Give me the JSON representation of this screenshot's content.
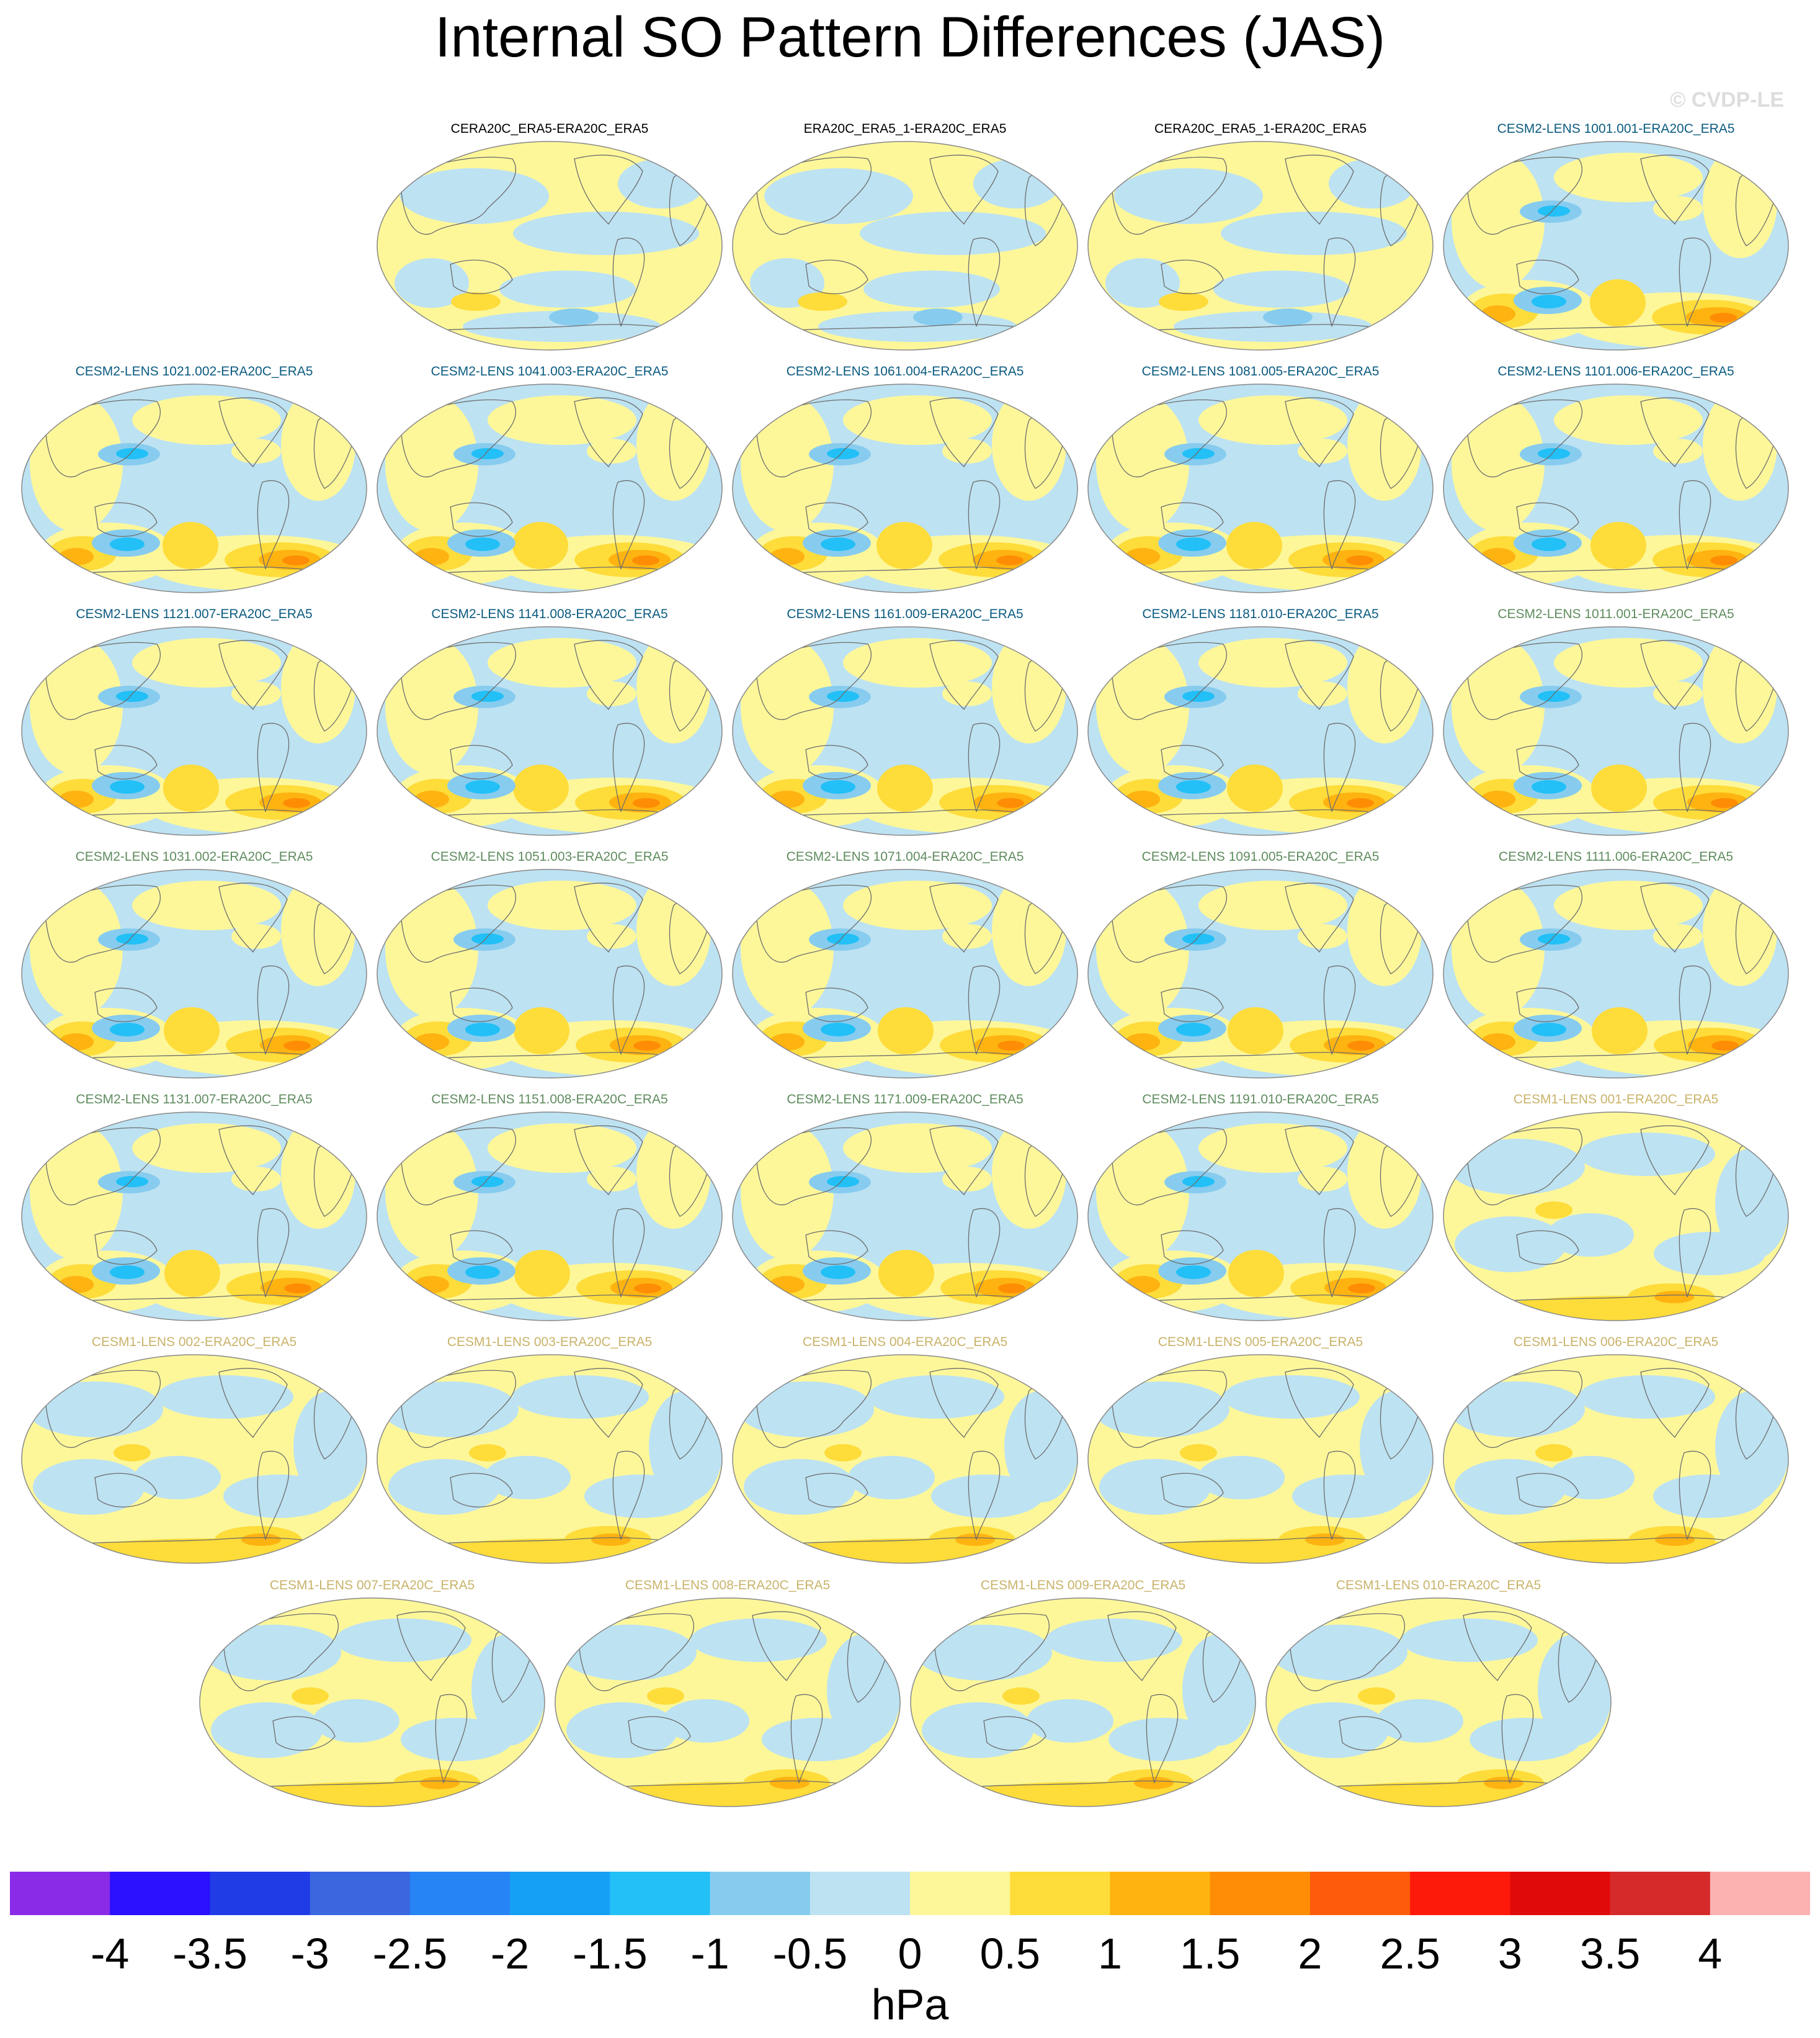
{
  "title": "Internal SO Pattern Differences (JAS)",
  "watermark": "© CVDP-LE",
  "group_colors": {
    "obs": "#000000",
    "cesm2_a": "#0b5b80",
    "cesm2_b": "#5f8c5f",
    "cesm1": "#c9b36a"
  },
  "panels": [
    {
      "label": "CERA20C_ERA5-ERA20C_ERA5",
      "group": "obs",
      "pattern": "obs"
    },
    {
      "label": "ERA20C_ERA5_1-ERA20C_ERA5",
      "group": "obs",
      "pattern": "obs"
    },
    {
      "label": "CERA20C_ERA5_1-ERA20C_ERA5",
      "group": "obs",
      "pattern": "obs"
    },
    {
      "label": "CESM2-LENS 1001.001-ERA20C_ERA5",
      "group": "cesm2_a",
      "pattern": "cesm2"
    },
    {
      "label": "CESM2-LENS 1021.002-ERA20C_ERA5",
      "group": "cesm2_a",
      "pattern": "cesm2"
    },
    {
      "label": "CESM2-LENS 1041.003-ERA20C_ERA5",
      "group": "cesm2_a",
      "pattern": "cesm2"
    },
    {
      "label": "CESM2-LENS 1061.004-ERA20C_ERA5",
      "group": "cesm2_a",
      "pattern": "cesm2"
    },
    {
      "label": "CESM2-LENS 1081.005-ERA20C_ERA5",
      "group": "cesm2_a",
      "pattern": "cesm2"
    },
    {
      "label": "CESM2-LENS 1101.006-ERA20C_ERA5",
      "group": "cesm2_a",
      "pattern": "cesm2"
    },
    {
      "label": "CESM2-LENS 1121.007-ERA20C_ERA5",
      "group": "cesm2_a",
      "pattern": "cesm2"
    },
    {
      "label": "CESM2-LENS 1141.008-ERA20C_ERA5",
      "group": "cesm2_a",
      "pattern": "cesm2"
    },
    {
      "label": "CESM2-LENS 1161.009-ERA20C_ERA5",
      "group": "cesm2_a",
      "pattern": "cesm2"
    },
    {
      "label": "CESM2-LENS 1181.010-ERA20C_ERA5",
      "group": "cesm2_a",
      "pattern": "cesm2"
    },
    {
      "label": "CESM2-LENS 1011.001-ERA20C_ERA5",
      "group": "cesm2_b",
      "pattern": "cesm2"
    },
    {
      "label": "CESM2-LENS 1031.002-ERA20C_ERA5",
      "group": "cesm2_b",
      "pattern": "cesm2"
    },
    {
      "label": "CESM2-LENS 1051.003-ERA20C_ERA5",
      "group": "cesm2_b",
      "pattern": "cesm2"
    },
    {
      "label": "CESM2-LENS 1071.004-ERA20C_ERA5",
      "group": "cesm2_b",
      "pattern": "cesm2"
    },
    {
      "label": "CESM2-LENS 1091.005-ERA20C_ERA5",
      "group": "cesm2_b",
      "pattern": "cesm2"
    },
    {
      "label": "CESM2-LENS 1111.006-ERA20C_ERA5",
      "group": "cesm2_b",
      "pattern": "cesm2"
    },
    {
      "label": "CESM2-LENS 1131.007-ERA20C_ERA5",
      "group": "cesm2_b",
      "pattern": "cesm2"
    },
    {
      "label": "CESM2-LENS 1151.008-ERA20C_ERA5",
      "group": "cesm2_b",
      "pattern": "cesm2"
    },
    {
      "label": "CESM2-LENS 1171.009-ERA20C_ERA5",
      "group": "cesm2_b",
      "pattern": "cesm2"
    },
    {
      "label": "CESM2-LENS 1191.010-ERA20C_ERA5",
      "group": "cesm2_b",
      "pattern": "cesm2"
    },
    {
      "label": "CESM1-LENS 001-ERA20C_ERA5",
      "group": "cesm1",
      "pattern": "cesm1"
    },
    {
      "label": "CESM1-LENS 002-ERA20C_ERA5",
      "group": "cesm1",
      "pattern": "cesm1"
    },
    {
      "label": "CESM1-LENS 003-ERA20C_ERA5",
      "group": "cesm1",
      "pattern": "cesm1"
    },
    {
      "label": "CESM1-LENS 004-ERA20C_ERA5",
      "group": "cesm1",
      "pattern": "cesm1"
    },
    {
      "label": "CESM1-LENS 005-ERA20C_ERA5",
      "group": "cesm1",
      "pattern": "cesm1"
    },
    {
      "label": "CESM1-LENS 006-ERA20C_ERA5",
      "group": "cesm1",
      "pattern": "cesm1"
    },
    {
      "label": "CESM1-LENS 007-ERA20C_ERA5",
      "group": "cesm1",
      "pattern": "cesm1"
    },
    {
      "label": "CESM1-LENS 008-ERA20C_ERA5",
      "group": "cesm1",
      "pattern": "cesm1"
    },
    {
      "label": "CESM1-LENS 009-ERA20C_ERA5",
      "group": "cesm1",
      "pattern": "cesm1"
    },
    {
      "label": "CESM1-LENS 010-ERA20C_ERA5",
      "group": "cesm1",
      "pattern": "cesm1"
    }
  ],
  "colorbar": {
    "ticks": [
      "-4",
      "-3.5",
      "-3",
      "-2.5",
      "-2",
      "-1.5",
      "-1",
      "-0.5",
      "0",
      "0.5",
      "1",
      "1.5",
      "2",
      "2.5",
      "3",
      "3.5",
      "4"
    ],
    "colors": [
      "#8a2be8",
      "#2a10ff",
      "#1f3ce6",
      "#3a66e0",
      "#2784f5",
      "#16a0f5",
      "#22c0f7",
      "#87ccef",
      "#bde2f2",
      "#fdf79a",
      "#fedc3a",
      "#feb311",
      "#fe8d05",
      "#fe5c0a",
      "#fe1a0a",
      "#e10a0a",
      "#d62a2a",
      "#fdb2b2"
    ],
    "units": "hPa"
  },
  "chart_data": {
    "type": "heatmap",
    "title": "Internal SO Pattern Differences (JAS)",
    "colorbar_levels": [
      -4,
      -3.5,
      -3,
      -2.5,
      -2,
      -1.5,
      -1,
      -0.5,
      0,
      0.5,
      1,
      1.5,
      2,
      2.5,
      3,
      3.5,
      4
    ],
    "units": "hPa",
    "panel_count": 33,
    "layout": "7 rows of map panels: 4, 5, 5, 5, 5, 5, 4",
    "projection": "Robinson-style global map, Pacific-centred"
  }
}
